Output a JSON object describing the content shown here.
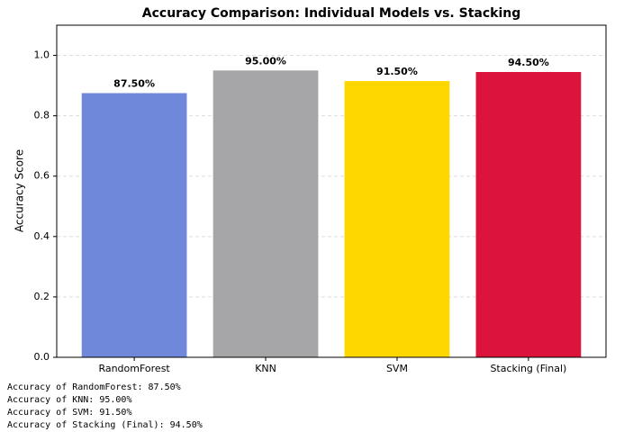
{
  "chart_data": {
    "type": "bar",
    "title": "Accuracy Comparison: Individual Models vs. Stacking",
    "y_label": "Accuracy Score",
    "categories": [
      "RandomForest",
      "KNN",
      "SVM",
      "Stacking (Final)"
    ],
    "values": [
      0.875,
      0.95,
      0.915,
      0.945
    ],
    "value_labels": [
      "87.50%",
      "95.00%",
      "91.50%",
      "94.50%"
    ],
    "colors": [
      "#6f88d9",
      "#a6a6a9",
      "#ffd700",
      "#dc143c"
    ],
    "ylim": [
      0,
      1.1
    ],
    "yticks": [
      {
        "value": 0,
        "label": "0.0"
      },
      0.2,
      0.4,
      0.6,
      0.8,
      {
        "value": 1,
        "label": "1.0"
      }
    ],
    "grid": true
  },
  "output": {
    "lines": [
      "Accuracy of RandomForest: 87.50%",
      "Accuracy of KNN: 95.00%",
      "Accuracy of SVM: 91.50%",
      "Accuracy of Stacking (Final): 94.50%"
    ]
  }
}
